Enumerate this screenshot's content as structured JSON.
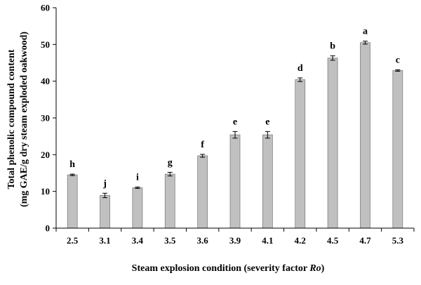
{
  "chart_data": {
    "type": "bar",
    "categories": [
      "2.5",
      "3.1",
      "3.4",
      "3.5",
      "3.6",
      "3.9",
      "4.1",
      "4.2",
      "4.5",
      "4.7",
      "5.3"
    ],
    "values": [
      14.5,
      8.9,
      11.0,
      14.7,
      19.7,
      25.4,
      25.4,
      40.4,
      46.3,
      50.5,
      42.9
    ],
    "errors": [
      0.2,
      0.6,
      0.2,
      0.5,
      0.4,
      0.9,
      0.9,
      0.5,
      0.6,
      0.4,
      0.2
    ],
    "significance_letters": [
      "h",
      "j",
      "i",
      "g",
      "f",
      "e",
      "e",
      "d",
      "b",
      "a",
      "c"
    ],
    "ylim": [
      0,
      60
    ],
    "yticks": [
      0,
      10,
      20,
      30,
      40,
      50,
      60
    ],
    "ylabel_line1": "Total phenolic compound content",
    "ylabel_line2": "(mg GAE/g dry steam exploded oakwood)",
    "xlabel_main": "Steam explosion condition (severity factor ",
    "xlabel_italic": "Ro",
    "xlabel_end": ")",
    "grid": false,
    "legend": "none",
    "bar_color": "#c0c0c0",
    "bar_edge_color": "#808080"
  }
}
